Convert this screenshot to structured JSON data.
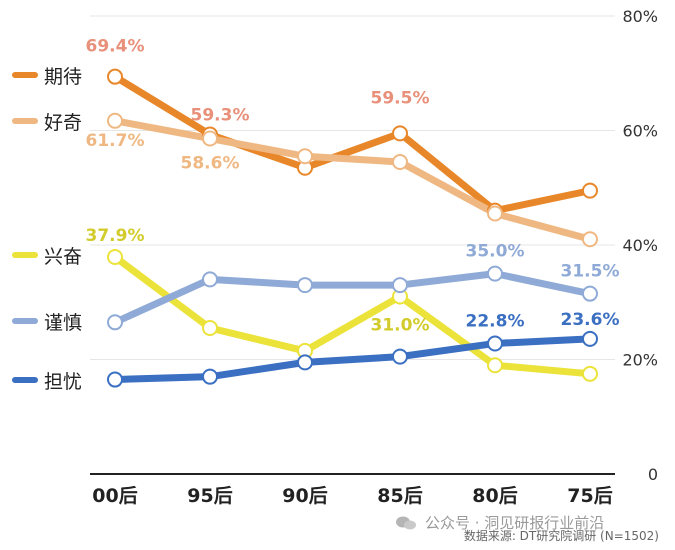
{
  "chart_data": {
    "type": "line",
    "categories": [
      "00后",
      "95后",
      "90后",
      "85后",
      "80后",
      "75后"
    ],
    "y_axis": {
      "ticks": [
        "0",
        "20%",
        "40%",
        "60%",
        "80%"
      ],
      "ylim": [
        0,
        80
      ],
      "position": "right"
    },
    "grid": true,
    "legend": "left",
    "series": [
      {
        "name": "期待",
        "color": "#E8872A",
        "values": [
          69.4,
          59.3,
          53.5,
          59.5,
          46.0,
          49.5
        ],
        "labels": [
          "69.4%",
          "59.3%",
          "",
          "59.5%",
          "",
          ""
        ]
      },
      {
        "name": "好奇",
        "color": "#EFB882",
        "values": [
          61.7,
          58.6,
          55.5,
          54.5,
          45.5,
          41.0
        ],
        "labels": [
          "61.7%",
          "58.6%",
          "",
          "",
          "",
          ""
        ]
      },
      {
        "name": "兴奋",
        "color": "#EBE33A",
        "values": [
          37.9,
          25.5,
          21.5,
          31.0,
          19.0,
          17.5
        ],
        "labels": [
          "37.9%",
          "",
          "",
          "31.0%",
          "",
          ""
        ]
      },
      {
        "name": "谨慎",
        "color": "#8FAAD6",
        "values": [
          26.5,
          34.0,
          33.0,
          33.0,
          35.0,
          31.5
        ],
        "labels": [
          "",
          "",
          "",
          "",
          "35.0%",
          "31.5%"
        ]
      },
      {
        "name": "担忧",
        "color": "#3A6FC2",
        "values": [
          16.5,
          17.0,
          19.5,
          20.5,
          22.8,
          23.6
        ],
        "labels": [
          "",
          "",
          "",
          "",
          "22.8%",
          "23.6%"
        ]
      }
    ],
    "label_colors": {
      "期待": "#E8907A",
      "好奇": "#EFB882",
      "兴奋": "#D2CB2C",
      "谨慎": "#8FAAD6",
      "担忧": "#3A6FC2"
    }
  },
  "source": "数据来源: DT研究院调研 (N=1502)",
  "watermark": "公众号 · 洞见研报行业前沿"
}
